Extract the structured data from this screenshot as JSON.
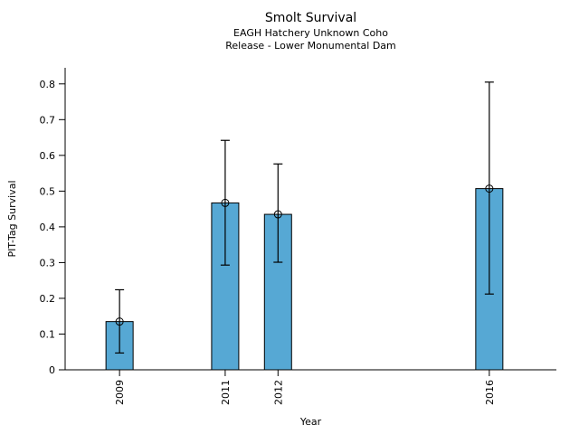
{
  "chart_data": {
    "type": "bar",
    "title": "Smolt Survival",
    "subtitle1": "EAGH Hatchery Unknown Coho",
    "subtitle2": "Release - Lower Monumental Dam",
    "xlabel": "Year",
    "ylabel": "PIT-Tag Survival",
    "categories": [
      "2009",
      "2011",
      "2012",
      "2016"
    ],
    "x_years": [
      2009,
      2011,
      2012,
      2016
    ],
    "values": [
      0.135,
      0.467,
      0.435,
      0.507
    ],
    "error_low": [
      0.047,
      0.293,
      0.301,
      0.212
    ],
    "error_high": [
      0.224,
      0.642,
      0.576,
      0.805
    ],
    "yticks": [
      0,
      0.1,
      0.2,
      0.3,
      0.4,
      0.5,
      0.6,
      0.7,
      0.8
    ],
    "ytick_labels": [
      "0",
      "0.1",
      "0.2",
      "0.3",
      "0.4",
      "0.5",
      "0.6",
      "0.7",
      "0.8"
    ],
    "ylim": [
      0,
      0.845
    ],
    "xlim_years": [
      2007.97,
      2017.27
    ],
    "grid": false,
    "legend": "none",
    "marker": "open-circle",
    "bar_color": "#56a8d4",
    "bar_edge_color": "#000000",
    "error_color": "#000000",
    "axis_color": "#000000"
  }
}
